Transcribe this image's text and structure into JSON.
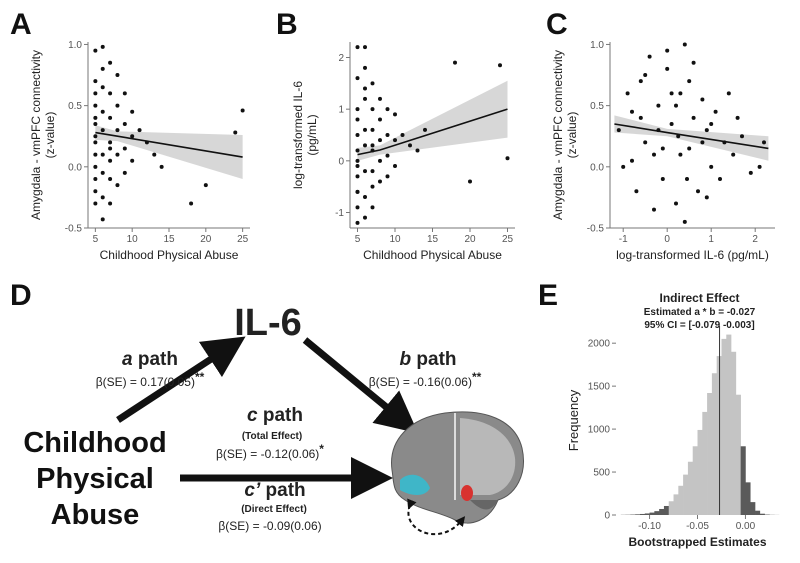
{
  "chart_data": [
    {
      "type": "scatter",
      "label": "A",
      "xlabel": "Childhood Physical Abuse",
      "ylabel": [
        "Amygdala - vmPFC connectivity",
        "(z-value)"
      ],
      "x": [
        5,
        5,
        5,
        5,
        5,
        5,
        5,
        5,
        5,
        5,
        5,
        5,
        6,
        6,
        6,
        6,
        6,
        6,
        6,
        6,
        7,
        7,
        7,
        7,
        7,
        7,
        7,
        8,
        8,
        8,
        8,
        8,
        9,
        9,
        9,
        9,
        10,
        10,
        10,
        11,
        12,
        13,
        14,
        18,
        20,
        24,
        25,
        6,
        5,
        7
      ],
      "values": [
        0.95,
        0.7,
        0.5,
        0.35,
        0.2,
        0.1,
        0.0,
        -0.1,
        -0.2,
        -0.3,
        0.6,
        0.25,
        0.98,
        0.8,
        0.45,
        0.3,
        0.1,
        -0.05,
        -0.25,
        -0.43,
        0.85,
        0.6,
        0.4,
        0.2,
        0.05,
        -0.1,
        -0.3,
        0.75,
        0.5,
        0.3,
        0.1,
        -0.15,
        0.6,
        0.35,
        0.15,
        -0.05,
        0.45,
        0.25,
        0.05,
        0.3,
        0.2,
        0.1,
        0.0,
        -0.3,
        -0.15,
        0.28,
        0.46,
        0.65,
        0.4,
        0.15
      ],
      "fit": {
        "x": [
          5,
          8,
          25
        ],
        "values": [
          0.28,
          0.25,
          0.08
        ],
        "lower": [
          0.22,
          0.21,
          -0.1
        ],
        "upper": [
          0.34,
          0.29,
          0.26
        ]
      },
      "color": "#111111",
      "band_color": "#d0d0d0",
      "xlim": [
        4,
        26
      ],
      "ylim": [
        -0.5,
        1.02
      ],
      "xticks": [
        5,
        10,
        15,
        20,
        25
      ],
      "yticks": [
        -0.5,
        {
          "value": 0,
          "label": "0.0"
        },
        0.5,
        {
          "value": 1,
          "label": "1.0"
        }
      ]
    },
    {
      "type": "scatter",
      "label": "B",
      "xlabel": "Childhood Physical Abuse",
      "ylabel": [
        "log-transformed IL-6",
        "(pg/mL)"
      ],
      "x": [
        5,
        5,
        5,
        5,
        5,
        5,
        5,
        5,
        5,
        5,
        5,
        5,
        6,
        6,
        6,
        6,
        6,
        6,
        6,
        6,
        7,
        7,
        7,
        7,
        7,
        7,
        7,
        8,
        8,
        8,
        8,
        8,
        9,
        9,
        9,
        9,
        10,
        10,
        10,
        11,
        12,
        13,
        14,
        18,
        20,
        24,
        25,
        6,
        5,
        7
      ],
      "values": [
        2.2,
        1.6,
        1.0,
        0.5,
        0.2,
        0.0,
        -0.3,
        -0.6,
        -0.9,
        -1.2,
        0.8,
        -0.1,
        2.2,
        1.8,
        1.2,
        0.6,
        0.3,
        -0.2,
        -0.7,
        -1.1,
        1.5,
        1.0,
        0.6,
        0.2,
        -0.2,
        -0.5,
        -0.9,
        1.2,
        0.8,
        0.4,
        0.0,
        -0.4,
        1.0,
        0.5,
        0.1,
        -0.3,
        0.9,
        0.4,
        -0.1,
        0.5,
        0.3,
        0.2,
        0.6,
        1.9,
        -0.4,
        1.85,
        0.05,
        1.4,
        -0.6,
        0.3
      ],
      "fit": {
        "x": [
          5,
          8,
          25
        ],
        "values": [
          0.12,
          0.21,
          1.0
        ],
        "lower": [
          0.0,
          0.12,
          0.45
        ],
        "upper": [
          0.25,
          0.3,
          1.55
        ]
      },
      "color": "#111111",
      "band_color": "#d0d0d0",
      "xlim": [
        4,
        26
      ],
      "ylim": [
        -1.3,
        2.3
      ],
      "xticks": [
        5,
        10,
        15,
        20,
        25
      ],
      "yticks": [
        -1,
        0,
        1,
        2
      ]
    },
    {
      "type": "scatter",
      "label": "C",
      "xlabel": "log-transformed IL-6 (pg/mL)",
      "ylabel": [
        "Amygdala - vmPFC connectivity",
        "(z-value)"
      ],
      "x": [
        -1.1,
        -1.0,
        -0.9,
        -0.8,
        -0.7,
        -0.6,
        -0.5,
        -0.4,
        -0.3,
        -0.2,
        -0.1,
        0.0,
        0.1,
        0.2,
        0.3,
        0.4,
        0.5,
        0.6,
        0.7,
        0.8,
        0.9,
        1.0,
        1.1,
        1.2,
        1.3,
        1.4,
        1.5,
        1.7,
        1.9,
        2.1,
        2.2,
        -0.8,
        -0.5,
        -0.2,
        0.0,
        0.2,
        0.4,
        0.6,
        0.8,
        1.0,
        -0.3,
        0.1,
        0.3,
        0.5,
        -0.6,
        0.9,
        1.6,
        -0.1,
        0.25,
        0.45
      ],
      "values": [
        0.3,
        0.0,
        0.6,
        0.45,
        -0.2,
        0.7,
        0.2,
        0.9,
        0.1,
        0.5,
        -0.1,
        0.8,
        0.35,
        -0.3,
        0.6,
        1.0,
        0.15,
        0.4,
        -0.2,
        0.55,
        0.3,
        0.0,
        0.45,
        -0.1,
        0.2,
        0.6,
        0.1,
        0.25,
        -0.05,
        0.0,
        0.2,
        0.05,
        0.75,
        0.3,
        0.95,
        0.5,
        -0.45,
        0.85,
        0.2,
        0.35,
        -0.35,
        0.6,
        0.1,
        0.7,
        0.4,
        -0.25,
        0.4,
        0.15,
        0.25,
        -0.1
      ],
      "fit": {
        "x": [
          -1.2,
          0,
          2.3
        ],
        "values": [
          0.35,
          0.28,
          0.15
        ],
        "lower": [
          0.28,
          0.25,
          0.05
        ],
        "upper": [
          0.42,
          0.31,
          0.25
        ]
      },
      "color": "#111111",
      "band_color": "#d0d0d0",
      "xlim": [
        -1.3,
        2.45
      ],
      "ylim": [
        -0.5,
        1.02
      ],
      "xticks": [
        -1,
        0,
        1,
        2
      ],
      "yticks": [
        -0.5,
        {
          "value": 0,
          "label": "0.0"
        },
        0.5,
        {
          "value": 1,
          "label": "1.0"
        }
      ]
    },
    {
      "type": "histogram",
      "label": "E",
      "title": "Indirect Effect",
      "subtitle": "Estimated a * b  = -0.027",
      "subtitle2": "95% CI = [-0.079 -0.003]",
      "xlabel": "Bootstrapped Estimates",
      "ylabel": "Frequency",
      "bins": [
        -0.13,
        -0.125,
        -0.12,
        -0.115,
        -0.11,
        -0.105,
        -0.1,
        -0.095,
        -0.09,
        -0.085,
        -0.08,
        -0.075,
        -0.07,
        -0.065,
        -0.06,
        -0.055,
        -0.05,
        -0.045,
        -0.04,
        -0.035,
        -0.03,
        -0.025,
        -0.02,
        -0.015,
        -0.01,
        -0.005,
        0,
        0.005,
        0.01,
        0.015,
        0.02,
        0.025,
        0.03,
        0.035
      ],
      "values": [
        2,
        3,
        5,
        8,
        12,
        18,
        28,
        45,
        70,
        105,
        160,
        240,
        340,
        470,
        620,
        800,
        990,
        1200,
        1420,
        1650,
        1850,
        2050,
        2100,
        1900,
        1400,
        800,
        380,
        150,
        50,
        15,
        5,
        2,
        1
      ],
      "estimate": -0.027,
      "ci": [
        -0.079,
        -0.003
      ],
      "color": "#c4c4c4",
      "ci_color": "#5a5a5a",
      "xlim": [
        -0.135,
        0.035
      ],
      "ylim": [
        0,
        2200
      ],
      "xticks": [
        {
          "value": -0.1,
          "label": "-0.10"
        },
        {
          "value": -0.05,
          "label": "-0.05"
        },
        {
          "value": 0,
          "label": "0.00"
        }
      ],
      "yticks": [
        0,
        500,
        1000,
        1500,
        2000
      ]
    }
  ],
  "diagram": {
    "label": "D",
    "mediator": "IL-6",
    "predictor": [
      "Childhood",
      "Physical",
      "Abuse"
    ],
    "a_path": {
      "letter": "a",
      "word": "path",
      "stat": "β(SE) = 0.17(0.05)",
      "sig": "**"
    },
    "b_path": {
      "letter": "b",
      "word": "path",
      "stat": "β(SE) = -0.16(0.06)",
      "sig": "**"
    },
    "c_path": {
      "letter": "c",
      "word": "path",
      "note": "(Total Effect)",
      "stat": "β(SE) = -0.12(0.06)",
      "sig": "*"
    },
    "c_prime_path": {
      "letter": "c’",
      "word": "path",
      "note": "(Direct Effect)",
      "stat": "β(SE) = -0.09(0.06)"
    }
  }
}
